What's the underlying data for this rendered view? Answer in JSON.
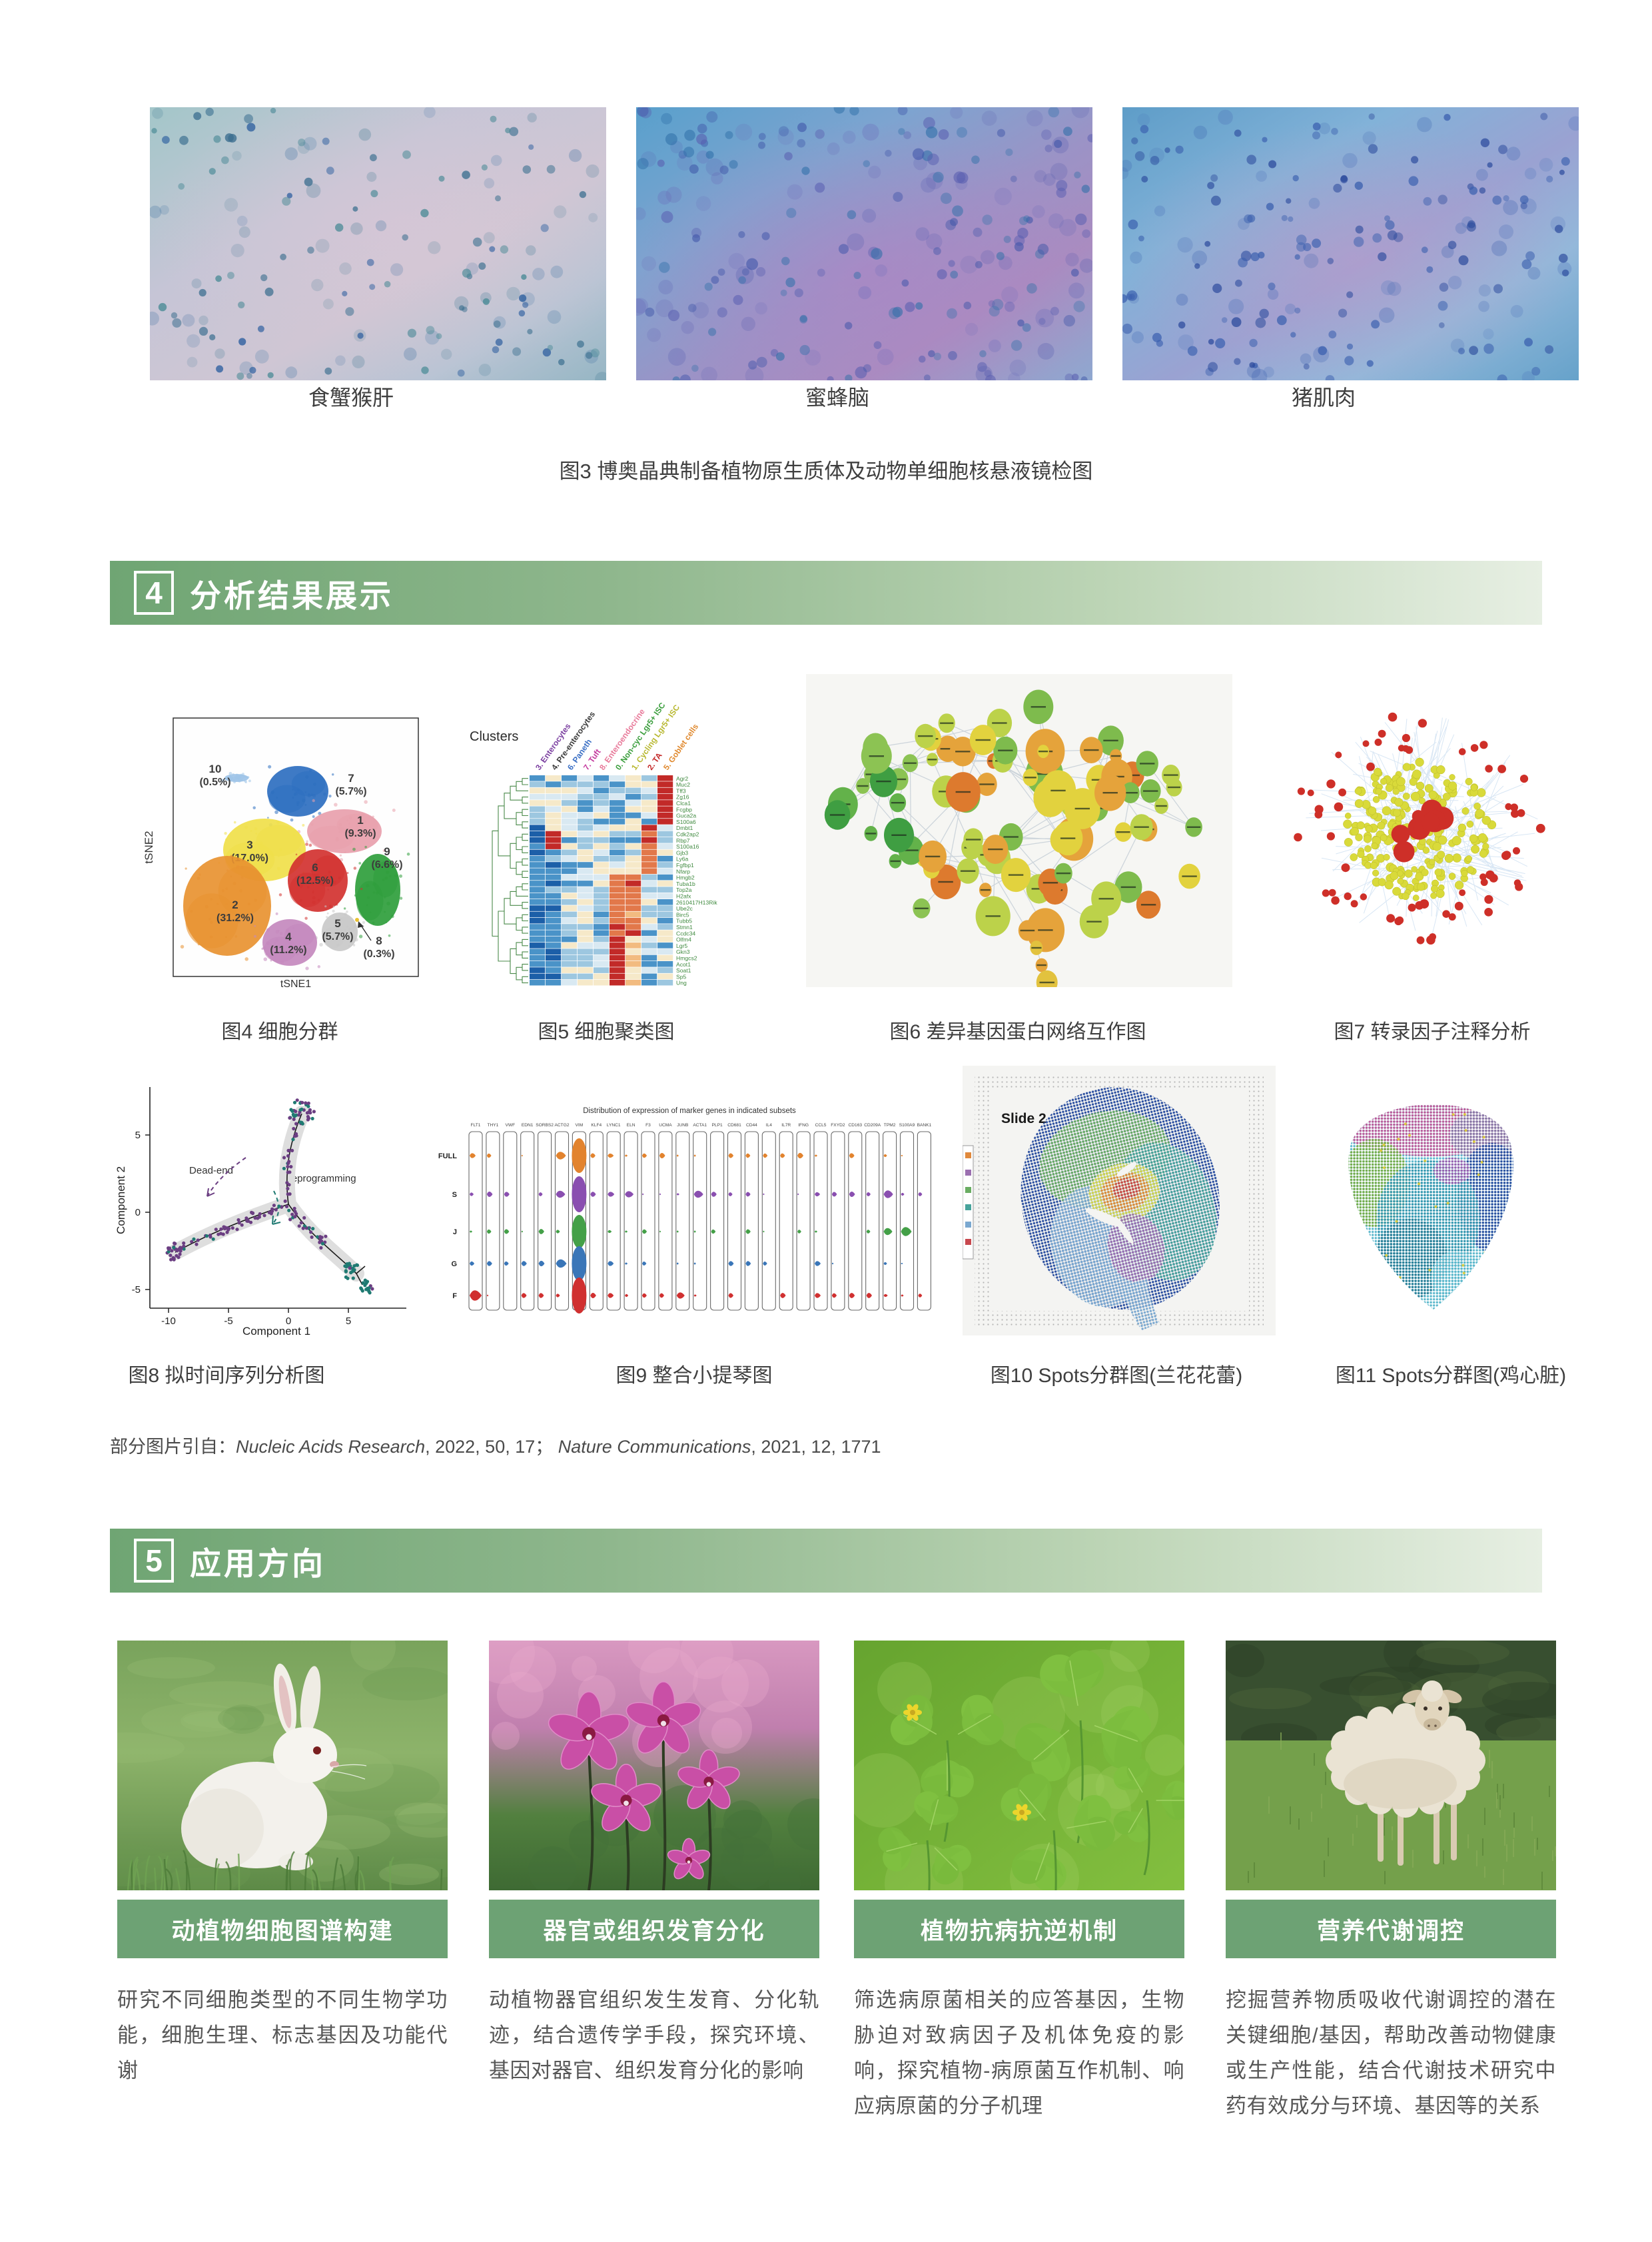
{
  "caption_fig3": "图3 博奥晶典制备植物原生质体及动物单细胞核悬液镜检图",
  "micrographs": [
    {
      "label": "食蟹猴肝"
    },
    {
      "label": "蜜蜂脑"
    },
    {
      "label": "猪肌肉"
    }
  ],
  "sections": {
    "s4": {
      "number": "4",
      "title": "分析结果展示"
    },
    "s5": {
      "number": "5",
      "title": "应用方向"
    }
  },
  "figures": [
    {
      "id": "fig4",
      "label": "图4 细胞分群",
      "xlabel": "tSNE1",
      "ylabel": "tSNE2",
      "clusters": [
        {
          "name": "10",
          "pct": "(0.5%)",
          "color": "#9fc4e8"
        },
        {
          "name": "7",
          "pct": "(5.7%)",
          "color": "#2e6fc0"
        },
        {
          "name": "1",
          "pct": "(9.3%)",
          "color": "#e8a0ac"
        },
        {
          "name": "3",
          "pct": "(17.0%)",
          "color": "#f0e04a"
        },
        {
          "name": "9",
          "pct": "(6.6%)",
          "color": "#2f9e3c"
        },
        {
          "name": "6",
          "pct": "(12.5%)",
          "color": "#d23230"
        },
        {
          "name": "2",
          "pct": "(31.2%)",
          "color": "#e89231"
        },
        {
          "name": "5",
          "pct": "(5.7%)",
          "color": "#c9c9c9"
        },
        {
          "name": "4",
          "pct": "(11.2%)",
          "color": "#c489be"
        },
        {
          "name": "8",
          "pct": "(0.3%)",
          "color": "#e8c030"
        }
      ]
    },
    {
      "id": "fig5",
      "label": "图5 细胞聚类图",
      "legend_title": "Clusters",
      "columns": [
        {
          "label": "3. Enterocytes",
          "color": "#7b3fa0"
        },
        {
          "label": "4. Pre-enterocytes",
          "color": "#3a3a3a"
        },
        {
          "label": "6. Paneth",
          "color": "#3a6fc4"
        },
        {
          "label": "7. Tuft",
          "color": "#c43a9e"
        },
        {
          "label": "8. Enteroendocrine",
          "color": "#e87a9a"
        },
        {
          "label": "0. Non-cyc Lgr5+ ISC",
          "color": "#3a9e3c"
        },
        {
          "label": "1. Cycling Lgr5+ ISC",
          "color": "#b8b830"
        },
        {
          "label": "2. TA",
          "color": "#c42a2a"
        },
        {
          "label": "5. Goblet cells",
          "color": "#e08a30"
        }
      ],
      "genes": [
        "Agr2",
        "Muc2",
        "Tff3",
        "Zg16",
        "Clca1",
        "Fcgbp",
        "Guca2a",
        "S100a6",
        "Dmbt1",
        "Cdk2ap2",
        "Rbp7",
        "S100a16",
        "Gjb3",
        "Ly6a",
        "Fgfbp1",
        "Nfarp",
        "Hmgb2",
        "Tuba1b",
        "Top2a",
        "H2afx",
        "2610417H13Rik",
        "Ube2c",
        "Birc5",
        "Tubb5",
        "Stmn1",
        "Ccdc34",
        "Olfm4",
        "Lgr5",
        "Gkn3",
        "Hmgcs2",
        "Acot1",
        "Soat1",
        "Sp5",
        "Ung"
      ]
    },
    {
      "id": "fig6",
      "label": "图6 差异基因蛋白网络互作图"
    },
    {
      "id": "fig7",
      "label": "图7 转录因子注释分析"
    },
    {
      "id": "fig8",
      "label": "图8 拟时间序列分析图",
      "xlabel": "Component 1",
      "ylabel": "Component 2",
      "xticks": [
        "-10",
        "-5",
        "0",
        "5"
      ],
      "yticks": [
        "5",
        "0",
        "-5"
      ],
      "annotations": [
        "Dead-end",
        "Reprogramming"
      ]
    },
    {
      "id": "fig9",
      "label": "图9 整合小提琴图",
      "title": "Distribution of expression of marker genes in indicated subsets",
      "rows": [
        {
          "label": "FULL",
          "color": "#e2832e"
        },
        {
          "label": "S",
          "color": "#8a4fb0"
        },
        {
          "label": "J",
          "color": "#44a048"
        },
        {
          "label": "G",
          "color": "#3a76b8"
        },
        {
          "label": "F",
          "color": "#d03030"
        }
      ],
      "genes": [
        "FLT1",
        "THY1",
        "VWF",
        "EDN1",
        "SORBS2",
        "ACTG2",
        "VIM",
        "KLF4",
        "LYNC1",
        "ELN",
        "F3",
        "UCMA",
        "JUNB",
        "ACTA1",
        "PLP1",
        "CD681",
        "CD44",
        "IL4",
        "IL7R",
        "IFNG",
        "CCL5",
        "FXYD2",
        "CD163",
        "CD209A",
        "TPM2",
        "S100A9",
        "BANK1"
      ]
    },
    {
      "id": "fig10",
      "label": "图10 Spots分群图(兰花花蕾)",
      "slide_label": "Slide 2"
    },
    {
      "id": "fig11",
      "label": "图11 Spots分群图(鸡心脏)"
    }
  ],
  "citation": {
    "prefix": "部分图片引自：",
    "j1": "Nucleic Acids Research",
    "r1": ", 2022,  50, 17；",
    "j2": "Nature Communications",
    "r2": ", 2021, 12, 1771"
  },
  "applications": [
    {
      "button": "动植物细胞图谱构建",
      "text": "研究不同细胞类型的不同生物学功能，细胞生理、标志基因及功能代谢"
    },
    {
      "button": "器官或组织发育分化",
      "text": "动植物器官组织发生发育、分化轨迹，结合遗传学手段，探究环境、基因对器官、组织发育分化的影响"
    },
    {
      "button": "植物抗病抗逆机制",
      "text": "筛选病原菌相关的应答基因，生物胁迫对致病因子及机体免疫的影响，探究植物-病原菌互作机制、响应病原菌的分子机理"
    },
    {
      "button": "营养代谢调控",
      "text": "挖掘营养物质吸收代谢调控的潜在关键细胞/基因，帮助改善动物健康或生产性能，结合代谢技术研究中药有效成分与环境、基因等的关系"
    }
  ],
  "colors": {
    "banner_green": "#6fa573",
    "button_green": "#6da274",
    "body_text": "#575757"
  }
}
